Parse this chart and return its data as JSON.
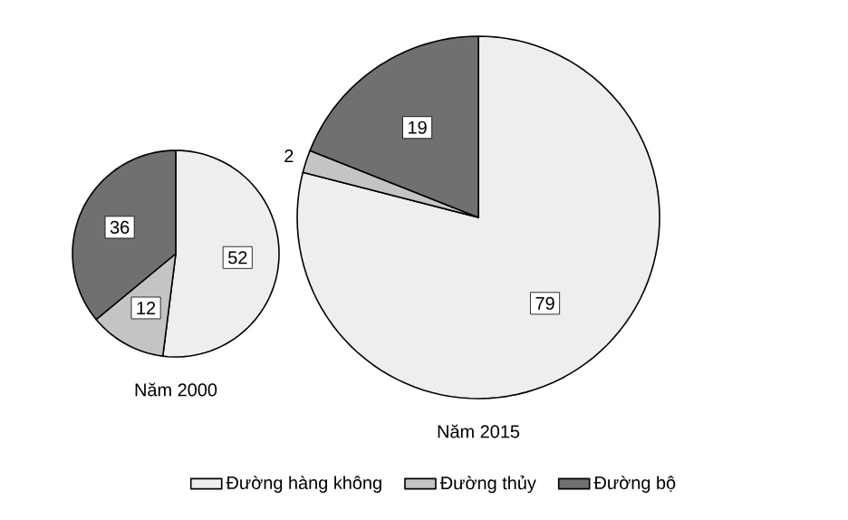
{
  "chart_data": [
    {
      "type": "pie",
      "title": "Năm 2000",
      "categories": [
        "Đường hàng không",
        "Đường thủy",
        "Đường bộ"
      ],
      "values": [
        52,
        12,
        36
      ],
      "colors": [
        "#eeeeee",
        "#c4c4c4",
        "#707070"
      ],
      "data_labels": true,
      "legend": "bottom"
    },
    {
      "type": "pie",
      "title": "Năm 2015",
      "categories": [
        null,
        null,
        null
      ],
      "values": [
        79,
        2,
        19
      ],
      "colors": [
        "#eeeeee",
        "#c4c4c4",
        "#707070"
      ],
      "data_labels": true
    }
  ]
}
